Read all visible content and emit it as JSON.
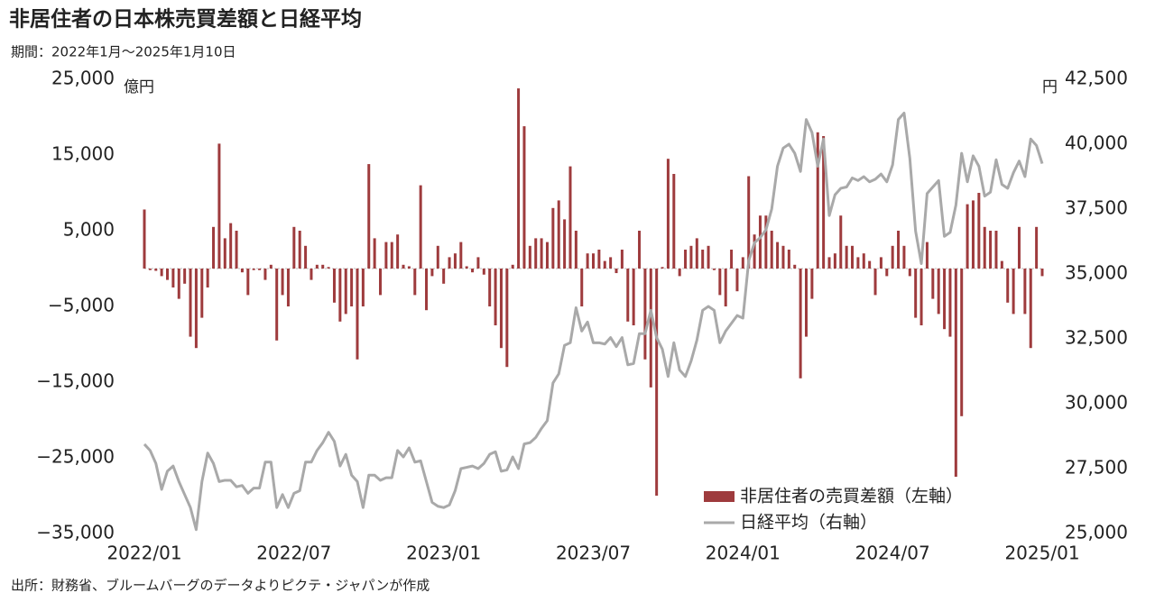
{
  "chart_data": {
    "type": "combo",
    "title": "非居住者の日本株売買差額と日経平均",
    "subtitle": "期間：2022年1月～2025年1月10日",
    "source": "出所：財務省、ブルームバーグのデータよりピクテ・ジャパンが作成",
    "y_unit": "億円",
    "y2_unit": "円",
    "categories": [
      "2022/01",
      null,
      null,
      null,
      null,
      null,
      null,
      null,
      null,
      null,
      null,
      null,
      null,
      null,
      null,
      null,
      null,
      null,
      null,
      null,
      null,
      null,
      null,
      null,
      null,
      null,
      "2022/07",
      null,
      null,
      null,
      null,
      null,
      null,
      null,
      null,
      null,
      null,
      null,
      null,
      null,
      null,
      null,
      null,
      null,
      null,
      null,
      null,
      null,
      null,
      null,
      null,
      null,
      "2023/01",
      null,
      null,
      null,
      null,
      null,
      null,
      null,
      null,
      null,
      null,
      null,
      null,
      null,
      null,
      null,
      null,
      null,
      null,
      null,
      null,
      null,
      null,
      null,
      null,
      null,
      "2023/07",
      null,
      null,
      null,
      null,
      null,
      null,
      null,
      null,
      null,
      null,
      null,
      null,
      null,
      null,
      null,
      null,
      null,
      null,
      null,
      null,
      null,
      null,
      null,
      null,
      null,
      "2024/01",
      null,
      null,
      null,
      null,
      null,
      null,
      null,
      null,
      null,
      null,
      null,
      null,
      null,
      null,
      null,
      null,
      null,
      null,
      null,
      null,
      null,
      null,
      null,
      null,
      null,
      "2024/07",
      null,
      null,
      null,
      null,
      null,
      null,
      null,
      null,
      null,
      null,
      null,
      null,
      null,
      null,
      null,
      null,
      null,
      null,
      null,
      null,
      null,
      null,
      null,
      null,
      null,
      "2025/01"
    ],
    "series": [
      {
        "name": "非居住者の売買差額（左軸）",
        "type": "bar",
        "color": "#9e3b3d",
        "values": [
          7800,
          -200,
          -300,
          -1000,
          -1500,
          -2500,
          -4000,
          -2000,
          -9000,
          -10500,
          -6500,
          -2500,
          5500,
          16500,
          4000,
          6000,
          5000,
          -500,
          -3500,
          -200,
          -200,
          -1500,
          500,
          -9500,
          -3500,
          -5000,
          5500,
          5000,
          3000,
          -1500,
          500,
          500,
          200,
          -4500,
          -7000,
          -6000,
          -5000,
          -12000,
          -5000,
          13800,
          4000,
          -3500,
          3500,
          3500,
          4500,
          500,
          300,
          -3500,
          11000,
          -5500,
          -1000,
          3000,
          -2000,
          1500,
          2000,
          3500,
          300,
          -500,
          1500,
          -800,
          -5000,
          -7500,
          -10500,
          -13000,
          500,
          23800,
          18800,
          3000,
          4000,
          4000,
          3500,
          8000,
          9000,
          6500,
          13500,
          5000,
          -5000,
          2000,
          2000,
          2500,
          1000,
          1500,
          -600,
          2500,
          -7000,
          -7500,
          5000,
          -12000,
          -15700,
          -30000,
          200,
          14500,
          12500,
          -1000,
          2500,
          3000,
          4000,
          2500,
          3000,
          -200,
          -3500,
          -5000,
          2500,
          -3000,
          1500,
          12200,
          4500,
          7000,
          7000,
          5000,
          3500,
          3000,
          2500,
          500,
          -14500,
          -9000,
          -4000,
          18000,
          17500,
          1500,
          2000,
          7000,
          3000,
          3000,
          1500,
          2000,
          1000,
          -3500,
          1500,
          -1000,
          3000,
          5000,
          3000,
          -1000,
          -6500,
          -7500,
          3500,
          -4000,
          -6000,
          -8000,
          -9000,
          -27500,
          -19500,
          8500,
          9000,
          10000,
          5500,
          5000,
          5000,
          1000,
          -4500,
          -6000,
          5500,
          -6000,
          -10500,
          5500,
          -1000
        ]
      },
      {
        "name": "日経平均（右軸）",
        "type": "line",
        "axis": "y2",
        "color": "#a9a9a9",
        "values": [
          28440,
          28200,
          27700,
          26700,
          27400,
          27600,
          27000,
          26500,
          26000,
          25150,
          27000,
          28100,
          27700,
          27000,
          27050,
          27050,
          26800,
          26850,
          26550,
          26750,
          26750,
          27750,
          27750,
          26000,
          26500,
          26000,
          26550,
          26650,
          27750,
          27750,
          28200,
          28500,
          28900,
          28550,
          27600,
          28050,
          27250,
          27000,
          26000,
          27250,
          27250,
          27050,
          27150,
          27150,
          28200,
          27950,
          28300,
          27750,
          27800,
          27000,
          26200,
          26050,
          26000,
          26100,
          26650,
          27500,
          27550,
          27600,
          27500,
          27700,
          28050,
          28150,
          27400,
          27450,
          27950,
          27500,
          28450,
          28500,
          28700,
          29050,
          29350,
          30800,
          31150,
          32250,
          32350,
          33700,
          32800,
          33150,
          32350,
          32350,
          32300,
          32550,
          32200,
          32550,
          31500,
          31550,
          32700,
          32700,
          33600,
          32550,
          32100,
          31050,
          32350,
          31300,
          31050,
          31650,
          32450,
          33600,
          33750,
          33600,
          32350,
          32800,
          33100,
          33400,
          33300,
          35500,
          36200,
          36400,
          36700,
          37500,
          39150,
          39850,
          40000,
          39650,
          38950,
          40950,
          40450,
          39150,
          40200,
          37250,
          38050,
          38300,
          38350,
          38700,
          38600,
          38750,
          38550,
          38650,
          38850,
          38550,
          39200,
          40950,
          41200,
          39450,
          36650,
          35400,
          38100,
          38350,
          38600,
          36450,
          36600,
          37650,
          39650,
          38550,
          39550,
          39150,
          38000,
          38150,
          39400,
          38450,
          38300,
          38900,
          39350,
          38750,
          40200,
          39950,
          39250
        ]
      }
    ],
    "ylim": [
      -35000,
      25000
    ],
    "yticks": [
      {
        "value": -35000,
        "label": "−35,000"
      },
      {
        "value": -25000,
        "label": "−25,000"
      },
      {
        "value": -15000,
        "label": "−15,000"
      },
      {
        "value": -5000,
        "label": "−5,000"
      },
      {
        "value": 5000,
        "label": "5,000"
      },
      {
        "value": 15000,
        "label": "15,000"
      },
      {
        "value": 25000,
        "label": "25,000"
      }
    ],
    "y2lim": [
      25000,
      42500
    ],
    "y2ticks": [
      {
        "value": 25000,
        "label": "25,000"
      },
      {
        "value": 27500,
        "label": "27,500"
      },
      {
        "value": 30000,
        "label": "30,000"
      },
      {
        "value": 32500,
        "label": "32,500"
      },
      {
        "value": 35000,
        "label": "35,000"
      },
      {
        "value": 37500,
        "label": "37,500"
      },
      {
        "value": 40000,
        "label": "40,000"
      },
      {
        "value": 42500,
        "label": "42,500"
      }
    ],
    "negative_tick_color": "#e0352f",
    "legend": "bottom-right"
  }
}
